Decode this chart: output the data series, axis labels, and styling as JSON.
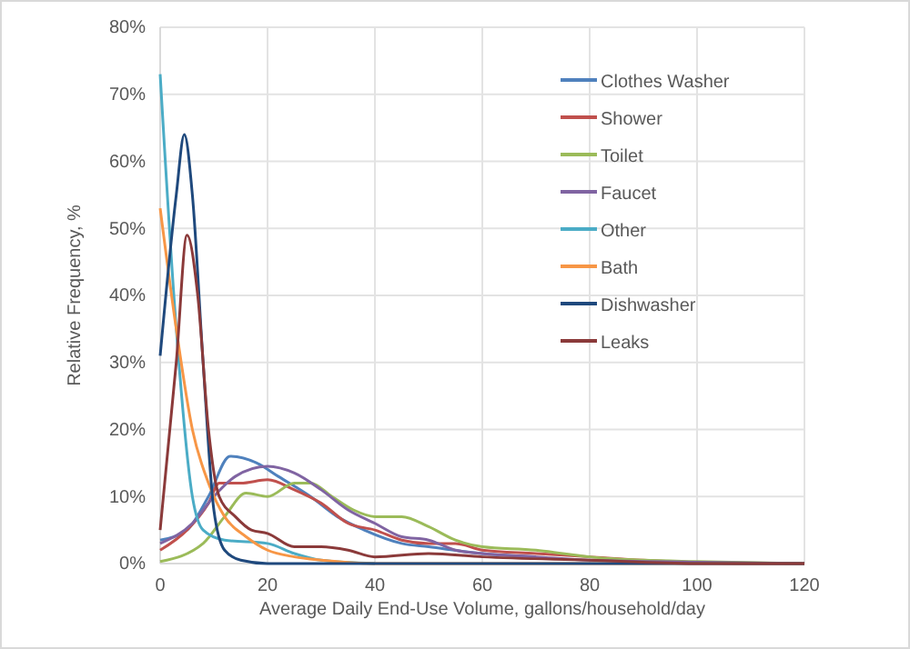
{
  "chart_data": {
    "type": "line",
    "xlabel": "Average Daily End-Use Volume, gallons/household/day",
    "ylabel": "Relative Frequency, %",
    "xlim": [
      0,
      120
    ],
    "xticks": [
      0,
      20,
      40,
      60,
      80,
      100,
      120
    ],
    "ylim": [
      0,
      80
    ],
    "yticks": [
      {
        "value": 0,
        "label": "0%"
      },
      {
        "value": 10,
        "label": "10%"
      },
      {
        "value": 20,
        "label": "20%"
      },
      {
        "value": 30,
        "label": "30%"
      },
      {
        "value": 40,
        "label": "40%"
      },
      {
        "value": 50,
        "label": "50%"
      },
      {
        "value": 60,
        "label": "60%"
      },
      {
        "value": 70,
        "label": "70%"
      },
      {
        "value": 80,
        "label": "80%"
      }
    ],
    "grid": true,
    "legend": "top right",
    "marker": "none",
    "line_style": "solid",
    "series": [
      {
        "name": "Clothes Washer",
        "color": "#4f81bd",
        "x": [
          0,
          5,
          9,
          13,
          18,
          22,
          28,
          33,
          38,
          45,
          50,
          60,
          70
        ],
        "values": [
          3.5,
          5,
          10,
          16,
          15,
          13,
          10,
          7,
          5,
          3,
          2.5,
          1.5,
          1
        ]
      },
      {
        "name": "Shower",
        "color": "#c0504d",
        "x": [
          0,
          5,
          9,
          11,
          15,
          20,
          25,
          30,
          35,
          40,
          45,
          50,
          55,
          60,
          70,
          80,
          90,
          110,
          120
        ],
        "values": [
          2,
          5,
          9,
          12,
          12,
          12.5,
          11,
          9,
          6,
          5,
          3.5,
          3,
          3,
          2,
          1.5,
          1,
          0.5,
          0,
          0
        ]
      },
      {
        "name": "Toilet",
        "color": "#9bbb59",
        "x": [
          0,
          8,
          12,
          16,
          20,
          25,
          28,
          32,
          36,
          40,
          45,
          50,
          55,
          60,
          70,
          75,
          80,
          90,
          100,
          120
        ],
        "values": [
          0.3,
          3,
          7,
          10.5,
          10,
          12,
          12,
          10,
          8,
          7,
          7,
          5.5,
          3.5,
          2.5,
          2,
          1.5,
          1,
          0.5,
          0.3,
          0
        ]
      },
      {
        "name": "Faucet",
        "color": "#8064a2",
        "x": [
          0,
          6,
          10,
          14,
          20,
          25,
          30,
          35,
          40,
          45,
          50,
          55,
          60,
          70,
          80,
          100,
          120
        ],
        "values": [
          3,
          6,
          10,
          13,
          14.5,
          13.5,
          11,
          8,
          6,
          4,
          3.5,
          2,
          1.5,
          1,
          0.5,
          0.2,
          0
        ]
      },
      {
        "name": "Other",
        "color": "#4bacc6",
        "x": [
          0,
          3,
          6,
          8,
          12,
          20,
          25,
          30,
          40
        ],
        "values": [
          73,
          35,
          10,
          5,
          3.5,
          3,
          1.5,
          0.5,
          0
        ]
      },
      {
        "name": "Bath",
        "color": "#f79646",
        "x": [
          0,
          3,
          6,
          9,
          12,
          16,
          20,
          25,
          30,
          40,
          60,
          120
        ],
        "values": [
          53,
          35,
          20,
          12,
          7,
          4,
          2,
          1,
          0.5,
          0,
          0,
          0
        ]
      },
      {
        "name": "Dishwasher",
        "color": "#1f497d",
        "x": [
          0,
          3,
          4.5,
          6,
          8,
          10,
          12,
          15,
          20,
          60,
          120
        ],
        "values": [
          31,
          55,
          64,
          55,
          30,
          8,
          2,
          0.5,
          0,
          0,
          0
        ]
      },
      {
        "name": "Leaks",
        "color": "#8b3a3a",
        "x": [
          0,
          3,
          5,
          7,
          9,
          11,
          14,
          17,
          20,
          25,
          30,
          35,
          40,
          50,
          60,
          80,
          100,
          120
        ],
        "values": [
          5,
          30,
          49,
          40,
          20,
          10,
          7,
          5,
          4.5,
          2.5,
          2.5,
          2,
          1,
          1.5,
          1,
          0.5,
          0,
          0
        ]
      }
    ]
  }
}
